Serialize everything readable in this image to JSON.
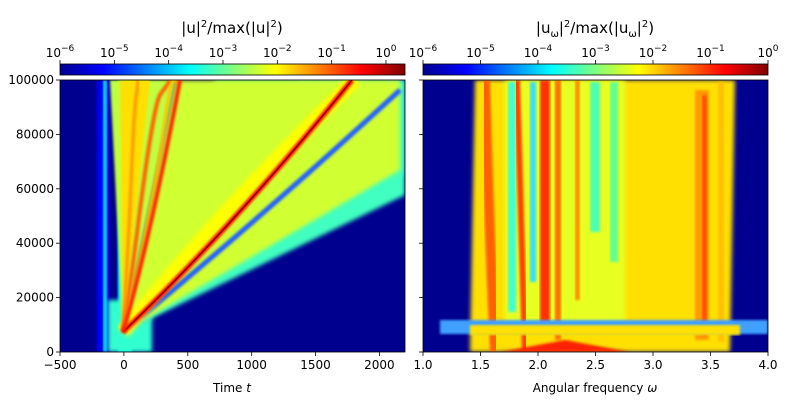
{
  "chart_data": [
    {
      "type": "heatmap",
      "panel": "left",
      "colorbar_title_parts": {
        "a": "|u|",
        "b": "2",
        "c": "/max(|u|",
        "d": "2",
        "e": ")"
      },
      "colorbar_ticks": [
        {
          "base": "10",
          "exp": "−6",
          "value": -6
        },
        {
          "base": "10",
          "exp": "−5",
          "value": -5
        },
        {
          "base": "10",
          "exp": "−4",
          "value": -4
        },
        {
          "base": "10",
          "exp": "−3",
          "value": -3
        },
        {
          "base": "10",
          "exp": "−2",
          "value": -2
        },
        {
          "base": "10",
          "exp": "−1",
          "value": -1
        },
        {
          "base": "10",
          "exp": "0",
          "value": 0
        }
      ],
      "colorbar_range_log10": [
        -6,
        0.35
      ],
      "colormap": "jet",
      "xlabel_parts": {
        "text": "Time ",
        "var": "t"
      },
      "ylabel": "",
      "xlim": [
        -500,
        2200
      ],
      "ylim": [
        0,
        100000
      ],
      "xticks": [
        {
          "label": "−500",
          "value": -500
        },
        {
          "label": "0",
          "value": 0
        },
        {
          "label": "500",
          "value": 500
        },
        {
          "label": "1000",
          "value": 1000
        },
        {
          "label": "1500",
          "value": 1500
        },
        {
          "label": "2000",
          "value": 2000
        }
      ],
      "yticks": [
        {
          "label": "0",
          "value": 0
        },
        {
          "label": "20000",
          "value": 20000
        },
        {
          "label": "40000",
          "value": 40000
        },
        {
          "label": "60000",
          "value": 60000
        },
        {
          "label": "80000",
          "value": 80000
        },
        {
          "label": "100000",
          "value": 100000
        }
      ],
      "features": {
        "main_soliton_trajectory": [
          [
            0,
            8000
          ],
          [
            300,
            20000
          ],
          [
            700,
            40000
          ],
          [
            1100,
            60000
          ],
          [
            1450,
            80000
          ],
          [
            1800,
            100000
          ]
        ],
        "dispersive_wave_edge": [
          [
            0,
            8000
          ],
          [
            2200,
            68000
          ]
        ],
        "input_pulse_center": 0
      }
    },
    {
      "type": "heatmap",
      "panel": "right",
      "colorbar_title_parts": {
        "a": "|u",
        "sub": "ω",
        "b": "|",
        "c": "2",
        "d": "/max(|u",
        "sub2": "ω",
        "e": "|",
        "f": "2",
        "g": ")"
      },
      "colorbar_ticks": [
        {
          "base": "10",
          "exp": "−6",
          "value": -6
        },
        {
          "base": "10",
          "exp": "−5",
          "value": -5
        },
        {
          "base": "10",
          "exp": "−4",
          "value": -4
        },
        {
          "base": "10",
          "exp": "−3",
          "value": -3
        },
        {
          "base": "10",
          "exp": "−2",
          "value": -2
        },
        {
          "base": "10",
          "exp": "−1",
          "value": -1
        },
        {
          "base": "10",
          "exp": "0",
          "value": 0
        }
      ],
      "colorbar_range_log10": [
        -6,
        0
      ],
      "colormap": "jet",
      "xlabel_parts": {
        "text": "Angular frequency ",
        "var": "ω"
      },
      "ylabel": "",
      "xlim": [
        1.0,
        4.0
      ],
      "ylim": [
        0,
        100000
      ],
      "xticks": [
        {
          "label": "1.0",
          "value": 1.0
        },
        {
          "label": "1.5",
          "value": 1.5
        },
        {
          "label": "2.0",
          "value": 2.0
        },
        {
          "label": "2.5",
          "value": 2.5
        },
        {
          "label": "3.0",
          "value": 3.0
        },
        {
          "label": "3.5",
          "value": 3.5
        },
        {
          "label": "4.0",
          "value": 4.0
        }
      ],
      "yticks": [
        {
          "label": "0",
          "value": 0
        },
        {
          "label": "20000",
          "value": 20000
        },
        {
          "label": "40000",
          "value": 40000
        },
        {
          "label": "60000",
          "value": 60000
        },
        {
          "label": "80000",
          "value": 80000
        },
        {
          "label": "100000",
          "value": 100000
        }
      ],
      "features": {
        "pump_center": 2.25,
        "spectral_extent_final": [
          1.45,
          3.65
        ],
        "soliton_redshift_path": [
          [
            2.25,
            8000
          ],
          [
            1.9,
            30000
          ],
          [
            1.75,
            60000
          ],
          [
            1.6,
            100000
          ]
        ]
      }
    }
  ]
}
